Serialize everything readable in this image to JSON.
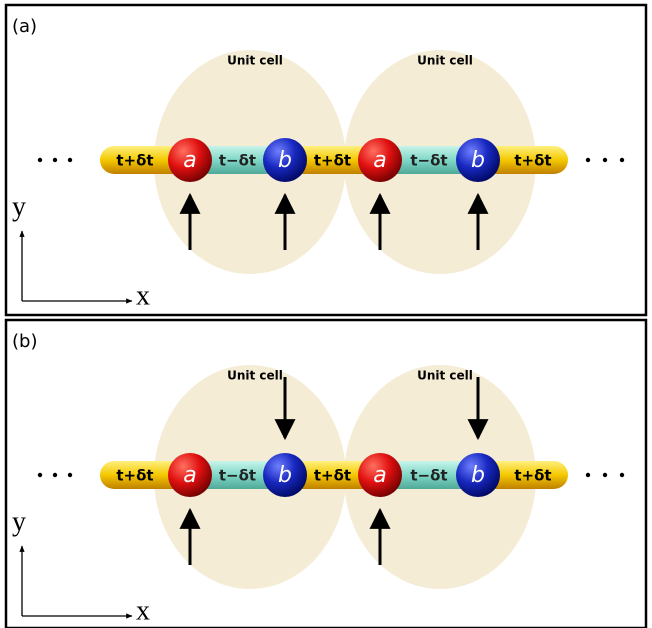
{
  "panels": [
    {
      "label": "(a)",
      "unit_cells": [
        "Unit cell",
        "Unit cell"
      ],
      "bonds": [
        "t+δt",
        "t−δt",
        "t+δt",
        "t−δt",
        "t+δt"
      ],
      "sites": [
        "a",
        "b",
        "a",
        "b"
      ],
      "axis_x": "x",
      "axis_y": "y"
    },
    {
      "label": "(b)",
      "unit_cells": [
        "Unit cell",
        "Unit cell"
      ],
      "bonds": [
        "t+δt",
        "t−δt",
        "t+δt",
        "t−δt",
        "t+δt"
      ],
      "sites": [
        "a",
        "b",
        "a",
        "b"
      ],
      "axis_x": "x",
      "axis_y": "y"
    }
  ]
}
